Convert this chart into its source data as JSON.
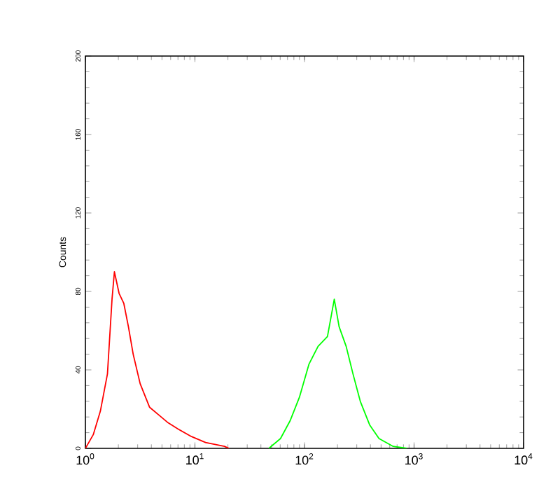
{
  "chart_data": {
    "type": "line",
    "ylabel": "Counts",
    "log": "x",
    "xlim": [
      1,
      10000
    ],
    "ylim": [
      0,
      200
    ],
    "xticks": [
      {
        "value": 1,
        "label": "10$^{0}$"
      },
      {
        "value": 10,
        "label": "10$^{1}$"
      },
      {
        "value": 100,
        "label": "10$^{2}$"
      },
      {
        "value": 1000,
        "label": "10$^{3}$"
      },
      {
        "value": 10000,
        "label": "10$^{4}$"
      }
    ],
    "yticks": [
      0,
      40,
      80,
      120,
      160,
      200
    ],
    "series": [
      {
        "color": "#ff0000",
        "x": [
          1,
          1.18,
          1.37,
          1.59,
          1.75,
          1.84,
          2.03,
          2.24,
          2.47,
          2.73,
          3.16,
          3.85,
          4.68,
          5.7,
          6.95,
          9.3,
          12.5,
          18.6,
          20.5
        ],
        "values": [
          0,
          7,
          19,
          38,
          76,
          90,
          79,
          74,
          62,
          48,
          33,
          21,
          17,
          13,
          10,
          6,
          3,
          1,
          0
        ]
      },
      {
        "color": "#00ff00",
        "x": [
          47.3,
          60.4,
          73.8,
          89.8,
          110,
          133,
          162,
          187,
          207,
          240,
          277,
          323,
          393,
          479,
          645,
          863
        ],
        "values": [
          0,
          5,
          14,
          26,
          43,
          52,
          57,
          76,
          62,
          52,
          38,
          24,
          12,
          5,
          1,
          0
        ]
      }
    ]
  }
}
